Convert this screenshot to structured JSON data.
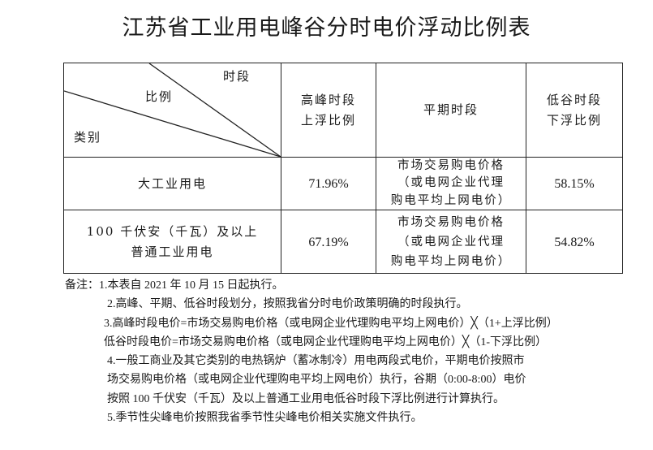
{
  "title": "江苏省工业用电峰谷分时电价浮动比例表",
  "table": {
    "corner": {
      "top": "时段",
      "middle": "比例",
      "bottom": "类别"
    },
    "headers": [
      "高峰时段\n上浮比例",
      "平期时段",
      "低谷时段\n下浮比例"
    ],
    "rows": [
      {
        "category": "大工业用电",
        "peak": "71.96%",
        "flat": "市场交易购电价格\n（或电网企业代理\n购电平均上网电价）",
        "valley": "58.15%"
      },
      {
        "category": "100 千伏安（千瓦）及以上\n普通工业用电",
        "peak": "67.19%",
        "flat": "市场交易购电价格\n（或电网企业代理\n购电平均上网电价）",
        "valley": "54.82%"
      }
    ]
  },
  "notes": {
    "label": "备注：",
    "lines": [
      "1.本表自 2021 年 10 月 15 日起执行。",
      "2.高峰、平期、低谷时段划分，按照我省分时电价政策明确的时段执行。",
      "3.高峰时段电价=市场交易购电价格（或电网企业代理购电平均上网电价）╳（1+上浮比例）",
      "低谷时段电价=市场交易购电价格（或电网企业代理购电平均上网电价）╳（1-下浮比例）",
      "4.一般工商业及其它类别的电热锅炉（蓄冰制冷）用电两段式电价，平期电价按照市",
      "场交易购电价格（或电网企业代理购电平均上网电价）执行，谷期（0:00-8:00）电价",
      "按照 100 千伏安（千瓦）及以上普通工业用电低谷时段下浮比例进行计算执行。",
      "5.季节性尖峰电价按照我省季节性尖峰电价相关实施文件执行。"
    ]
  }
}
